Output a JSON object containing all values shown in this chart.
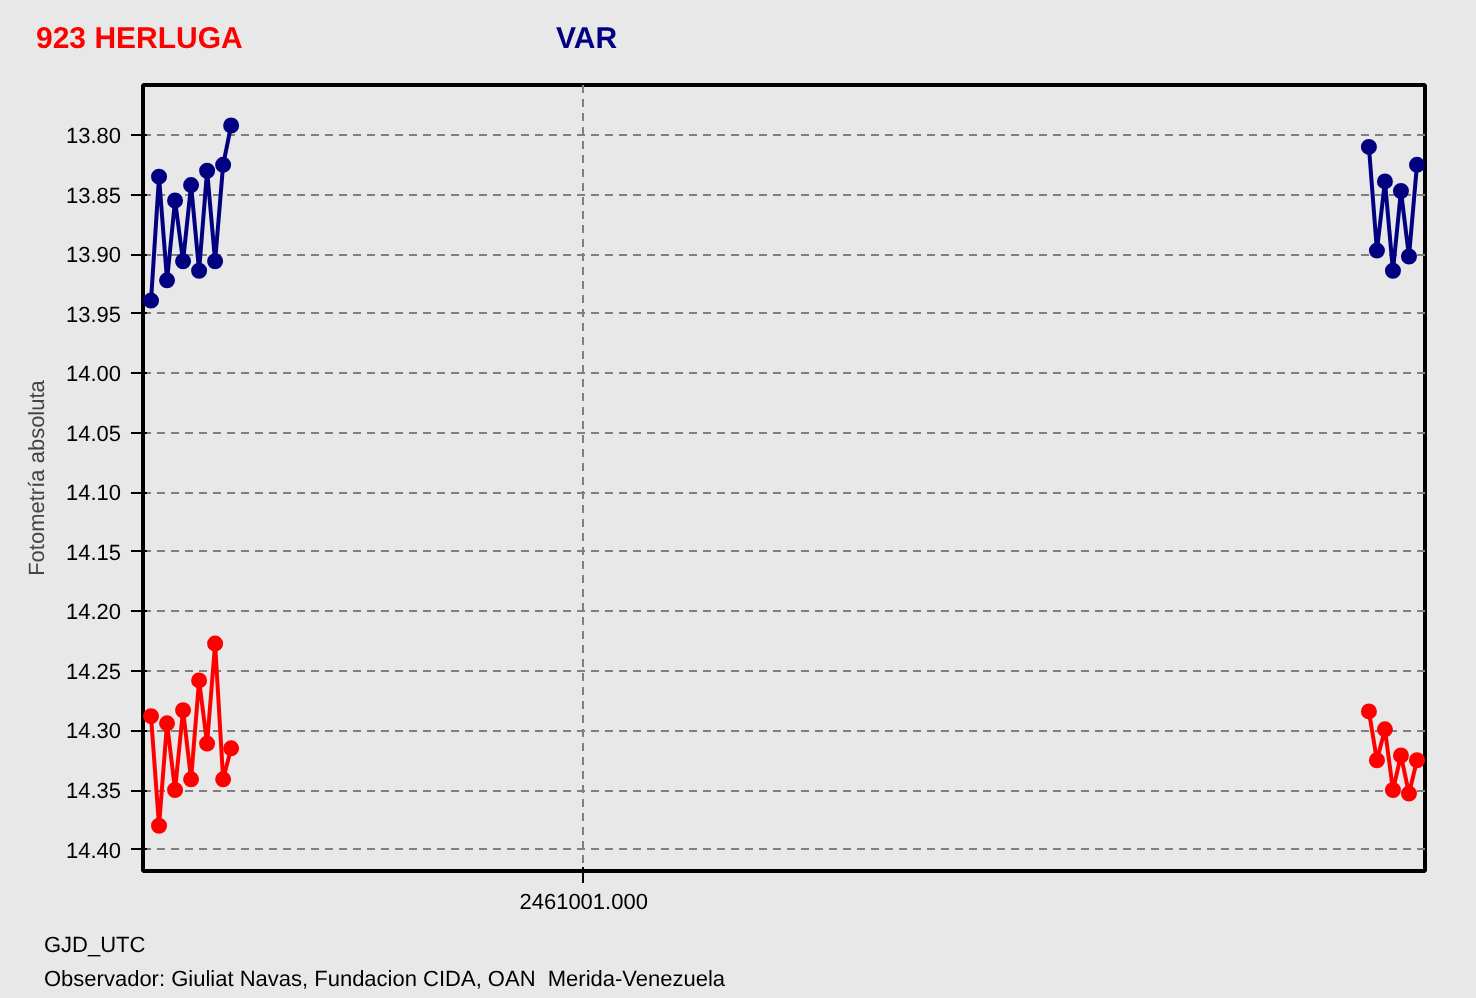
{
  "chart_data": {
    "type": "line",
    "xlabel": "GJD_UTC",
    "ylabel": "Fotometría absoluta",
    "annotations": [
      "Observador: Giuliat Navas, Fundacion CIDA, OAN  Merida-Venezuela"
    ],
    "categories": [
      null,
      null,
      null,
      null,
      null,
      null,
      null,
      null,
      null,
      null,
      null,
      null,
      null,
      null,
      null,
      null,
      null,
      null,
      null,
      null,
      null,
      null,
      null,
      null,
      null,
      null,
      null,
      null,
      null,
      null,
      null,
      null,
      null,
      null,
      null,
      null,
      null,
      null,
      null,
      null,
      null,
      null,
      null,
      null,
      null,
      null,
      null,
      null,
      null,
      null,
      null,
      null,
      null,
      null,
      "2461001.000",
      null,
      null,
      null,
      null,
      null,
      null,
      null,
      null,
      null,
      null,
      null,
      null,
      null,
      null,
      null,
      null,
      null,
      null,
      null,
      null,
      null,
      null,
      null,
      null,
      null,
      null,
      null,
      null,
      null,
      null,
      null,
      null,
      null,
      null,
      null,
      null,
      null,
      null,
      null,
      null,
      null,
      null,
      null,
      null,
      null,
      null,
      null,
      null,
      null,
      null,
      null,
      null,
      null,
      null,
      null,
      null,
      null,
      null,
      null,
      null,
      null,
      null,
      null,
      null,
      null,
      null,
      null,
      null,
      null,
      null,
      null,
      null,
      null,
      null,
      null,
      null,
      null,
      null,
      null,
      null,
      null,
      null,
      null,
      null,
      null,
      null,
      null,
      null,
      null,
      null,
      null,
      null,
      null,
      null,
      null,
      null,
      null,
      null,
      null,
      null,
      null,
      null,
      null,
      null
    ],
    "ylim": [
      14.418,
      13.758
    ],
    "yticks": [
      {
        "value": 13.8,
        "label": "13.80"
      },
      {
        "value": 13.85,
        "label": "13.85"
      },
      {
        "value": 13.9,
        "label": "13.90"
      },
      {
        "value": 13.95,
        "label": "13.95"
      },
      {
        "value": 14.0,
        "label": "14.00"
      },
      {
        "value": 14.05,
        "label": "14.05"
      },
      {
        "value": 14.1,
        "label": "14.10"
      },
      {
        "value": 14.15,
        "label": "14.15"
      },
      {
        "value": 14.2,
        "label": "14.20"
      },
      {
        "value": 14.25,
        "label": "14.25"
      },
      {
        "value": 14.3,
        "label": "14.30"
      },
      {
        "value": 14.35,
        "label": "14.35"
      },
      {
        "value": 14.4,
        "label": "14.40"
      }
    ],
    "grid": true,
    "marker": "circle",
    "line_style": "solid",
    "series": [
      {
        "name": "923 HERLUGA",
        "color": "#ff0000",
        "values": [
          14.288,
          14.38,
          14.294,
          14.35,
          14.283,
          14.341,
          14.258,
          14.311,
          14.227,
          14.341,
          14.315,
          null,
          null,
          null,
          null,
          null,
          null,
          null,
          null,
          null,
          null,
          null,
          null,
          null,
          null,
          null,
          null,
          null,
          null,
          null,
          null,
          null,
          null,
          null,
          null,
          null,
          null,
          null,
          null,
          null,
          null,
          null,
          null,
          null,
          null,
          null,
          null,
          null,
          null,
          null,
          null,
          null,
          null,
          null,
          null,
          null,
          null,
          null,
          null,
          null,
          null,
          null,
          null,
          null,
          null,
          null,
          null,
          null,
          null,
          null,
          null,
          null,
          null,
          null,
          null,
          null,
          null,
          null,
          null,
          null,
          null,
          null,
          null,
          null,
          null,
          null,
          null,
          null,
          null,
          null,
          null,
          null,
          null,
          null,
          null,
          null,
          null,
          null,
          null,
          null,
          null,
          null,
          null,
          null,
          null,
          null,
          null,
          null,
          null,
          null,
          null,
          null,
          null,
          null,
          null,
          null,
          null,
          null,
          null,
          null,
          null,
          null,
          null,
          null,
          null,
          null,
          null,
          null,
          null,
          null,
          null,
          null,
          null,
          null,
          null,
          null,
          null,
          null,
          null,
          null,
          null,
          null,
          null,
          null,
          null,
          null,
          null,
          null,
          null,
          null,
          null,
          null,
          14.284,
          14.325,
          14.299,
          14.35,
          14.321,
          14.353,
          14.325
        ]
      },
      {
        "name": "VAR",
        "color": "#000080",
        "values": [
          13.939,
          13.835,
          13.922,
          13.855,
          13.906,
          13.842,
          13.914,
          13.83,
          13.906,
          13.825,
          13.792,
          null,
          null,
          null,
          null,
          null,
          null,
          null,
          null,
          null,
          null,
          null,
          null,
          null,
          null,
          null,
          null,
          null,
          null,
          null,
          null,
          null,
          null,
          null,
          null,
          null,
          null,
          null,
          null,
          null,
          null,
          null,
          null,
          null,
          null,
          null,
          null,
          null,
          null,
          null,
          null,
          null,
          null,
          null,
          null,
          null,
          null,
          null,
          null,
          null,
          null,
          null,
          null,
          null,
          null,
          null,
          null,
          null,
          null,
          null,
          null,
          null,
          null,
          null,
          null,
          null,
          null,
          null,
          null,
          null,
          null,
          null,
          null,
          null,
          null,
          null,
          null,
          null,
          null,
          null,
          null,
          null,
          null,
          null,
          null,
          null,
          null,
          null,
          null,
          null,
          null,
          null,
          null,
          null,
          null,
          null,
          null,
          null,
          null,
          null,
          null,
          null,
          null,
          null,
          null,
          null,
          null,
          null,
          null,
          null,
          null,
          null,
          null,
          null,
          null,
          null,
          null,
          null,
          null,
          null,
          null,
          null,
          null,
          null,
          null,
          null,
          null,
          null,
          null,
          null,
          null,
          null,
          null,
          null,
          null,
          null,
          null,
          null,
          null,
          null,
          null,
          null,
          13.81,
          13.897,
          13.839,
          13.914,
          13.847,
          13.902,
          13.825
        ]
      }
    ]
  }
}
